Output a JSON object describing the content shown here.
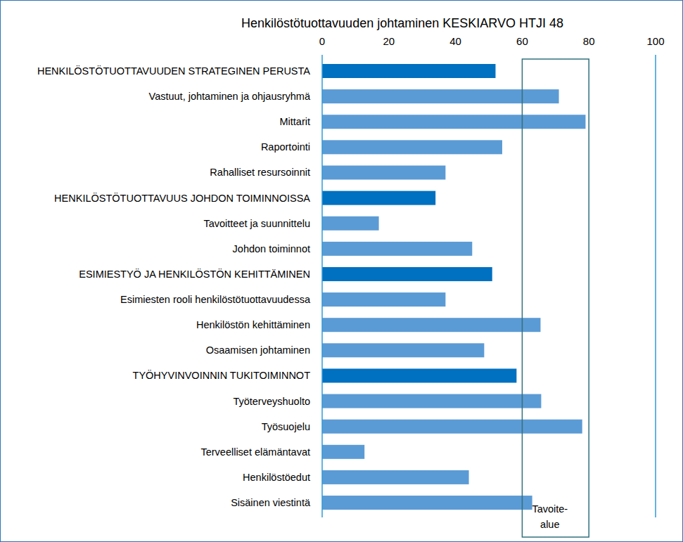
{
  "chart_data": {
    "type": "bar",
    "orientation": "horizontal",
    "title": "Henkilöstötuottavuuden johtaminen KESKIARVO HTJI 48",
    "categories": [
      "HENKILÖSTÖTUOTTAVUUDEN STRATEGINEN PERUSTA",
      "Vastuut, johtaminen ja ohjausryhmä",
      "Mittarit",
      "Raportointi",
      "Rahalliset resursoinnit",
      "HENKILÖSTÖTUOTTAVUUS JOHDON TOIMINNOISSA",
      "Tavoitteet ja suunnittelu",
      "Johdon toiminnot",
      "ESIMIESTYÖ JA HENKILÖSTÖN KEHITTÄMINEN",
      "Esimiesten rooli henkilöstötuottavuudessa",
      "Henkilöstön kehittäminen",
      "Osaamisen johtaminen",
      "TYÖHYVINVOINNIN TUKITOIMINNOT",
      "Työterveyshuolto",
      "Työsuojelu",
      "Terveelliset elämäntavat",
      "Henkilöstöedut",
      "Sisäinen viestintä"
    ],
    "values": [
      52,
      71,
      79,
      54,
      37,
      34,
      17,
      45,
      51,
      37,
      65.5,
      48.6,
      58.3,
      65.7,
      78,
      12.7,
      44,
      63
    ],
    "colors": [
      "#0070c0",
      "#5b9bd5",
      "#5b9bd5",
      "#5b9bd5",
      "#5b9bd5",
      "#0070c0",
      "#5b9bd5",
      "#5b9bd5",
      "#0070c0",
      "#5b9bd5",
      "#5b9bd5",
      "#5b9bd5",
      "#0070c0",
      "#5b9bd5",
      "#5b9bd5",
      "#5b9bd5",
      "#5b9bd5",
      "#5b9bd5"
    ],
    "xlim": [
      0,
      100
    ],
    "xticks": [
      0,
      20,
      40,
      60,
      80,
      100
    ],
    "grid": false,
    "annotations": [
      {
        "text": [
          "Tavoite-",
          "alue"
        ],
        "x_range": [
          60,
          80
        ]
      }
    ]
  }
}
